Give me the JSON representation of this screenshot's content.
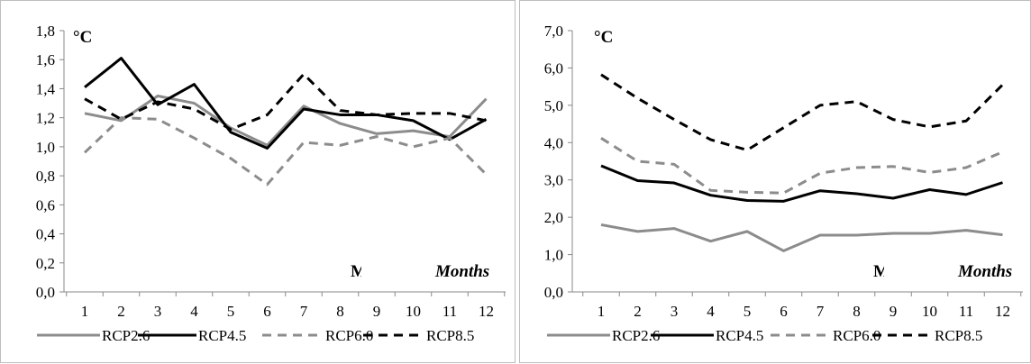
{
  "charts": [
    {
      "unit_label": "°C",
      "axis_word_partial": "M",
      "axis_word": "Months",
      "chart_data": {
        "type": "line",
        "x": [
          1,
          2,
          3,
          4,
          5,
          6,
          7,
          8,
          9,
          10,
          11,
          12
        ],
        "ylim": [
          0,
          1.8
        ],
        "yticks": [
          "0,0",
          "0,2",
          "0,4",
          "0,6",
          "0,8",
          "1,0",
          "1,2",
          "1,4",
          "1,6",
          "1,8"
        ],
        "xticks": [
          "1",
          "2",
          "3",
          "4",
          "5",
          "6",
          "7",
          "8",
          "9",
          "10",
          "11",
          "12"
        ],
        "legend_position": "bottom",
        "series": [
          {
            "name": "RCP2.6",
            "color": "#8c8c8c",
            "dash": "solid",
            "values": [
              1.23,
              1.18,
              1.35,
              1.3,
              1.13,
              1.01,
              1.28,
              1.16,
              1.09,
              1.11,
              1.07,
              1.33
            ]
          },
          {
            "name": "RCP4.5",
            "color": "#000000",
            "dash": "solid",
            "values": [
              1.41,
              1.61,
              1.29,
              1.43,
              1.1,
              0.99,
              1.26,
              1.22,
              1.22,
              1.18,
              1.05,
              1.19
            ]
          },
          {
            "name": "RCP6.0",
            "color": "#8c8c8c",
            "dash": "dashed",
            "values": [
              0.96,
              1.2,
              1.19,
              1.06,
              0.92,
              0.74,
              1.03,
              1.01,
              1.07,
              1.0,
              1.06,
              0.81
            ]
          },
          {
            "name": "RCP8.5",
            "color": "#000000",
            "dash": "dashed",
            "values": [
              1.33,
              1.19,
              1.31,
              1.26,
              1.12,
              1.22,
              1.5,
              1.25,
              1.22,
              1.23,
              1.23,
              1.18
            ]
          }
        ]
      }
    },
    {
      "unit_label": "°C",
      "axis_word_partial": "M",
      "axis_word": "Months",
      "chart_data": {
        "type": "line",
        "x": [
          1,
          2,
          3,
          4,
          5,
          6,
          7,
          8,
          9,
          10,
          11,
          12
        ],
        "ylim": [
          0,
          7
        ],
        "yticks": [
          "0,0",
          "1,0",
          "2,0",
          "3,0",
          "4,0",
          "5,0",
          "6,0",
          "7,0"
        ],
        "xticks": [
          "1",
          "2",
          "3",
          "4",
          "5",
          "6",
          "7",
          "8",
          "9",
          "10",
          "11",
          "12"
        ],
        "legend_position": "bottom",
        "series": [
          {
            "name": "RCP2.6",
            "color": "#8c8c8c",
            "dash": "solid",
            "values": [
              1.8,
              1.62,
              1.7,
              1.36,
              1.62,
              1.1,
              1.52,
              1.52,
              1.57,
              1.57,
              1.65,
              1.53
            ]
          },
          {
            "name": "RCP4.5",
            "color": "#000000",
            "dash": "solid",
            "values": [
              3.38,
              2.98,
              2.92,
              2.59,
              2.45,
              2.43,
              2.71,
              2.63,
              2.51,
              2.74,
              2.61,
              2.93
            ]
          },
          {
            "name": "RCP6.0",
            "color": "#8c8c8c",
            "dash": "dashed",
            "values": [
              4.12,
              3.5,
              3.42,
              2.72,
              2.67,
              2.65,
              3.18,
              3.33,
              3.36,
              3.2,
              3.33,
              3.75
            ]
          },
          {
            "name": "RCP8.5",
            "color": "#000000",
            "dash": "dashed",
            "values": [
              5.82,
              5.19,
              4.62,
              4.08,
              3.8,
              4.4,
              5.0,
              5.1,
              4.62,
              4.42,
              4.58,
              5.55
            ]
          }
        ]
      }
    }
  ]
}
